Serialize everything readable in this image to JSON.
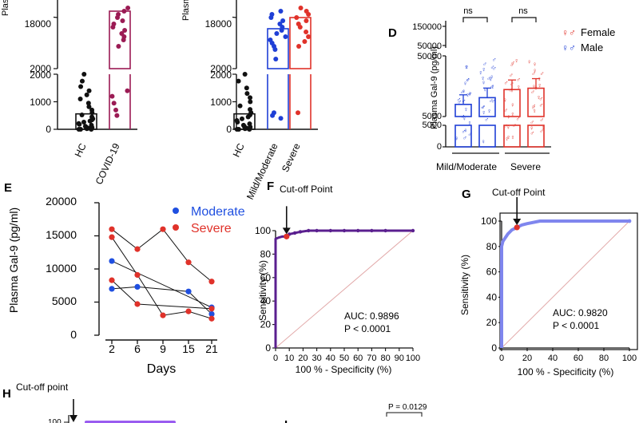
{
  "panel_letters": {
    "d": "D",
    "e": "E",
    "f": "F",
    "g": "G",
    "h": "H",
    "i": "I"
  },
  "top_fragments": {
    "a_ylabel": "Plas",
    "b_ylabel": "Plasma"
  },
  "colors": {
    "hc": "#111111",
    "covid": "#9b1b54",
    "mild": "#1f3fd6",
    "severe": "#e0322a",
    "moderate_line": "#1f4fe0",
    "roc_f": "#5a1f8f",
    "roc_g": "#7f86ee",
    "cutoff": "#e0322a",
    "diag": "#e2a9a9",
    "h_bar": "#9a5cf0"
  },
  "chart_data": [
    {
      "id": "A",
      "type": "scatter",
      "title": "",
      "xlabel": "",
      "ylabel": "Plas",
      "categories": [
        "HC",
        "COVID-19"
      ],
      "ytick_labels_upper": [
        "18000",
        "2000"
      ],
      "ytick_labels_lower": [
        "2000",
        "1000",
        "0"
      ],
      "lower_ylim": [
        0,
        2000
      ],
      "upper_ylim": [
        2000,
        22000
      ],
      "series": [
        {
          "name": "HC",
          "mean": 560,
          "values": [
            0,
            0,
            0,
            20,
            40,
            60,
            80,
            110,
            150,
            180,
            210,
            260,
            300,
            340,
            380,
            450,
            520,
            600,
            700,
            820,
            950,
            1100,
            1250,
            1400,
            1550,
            1750,
            2000
          ]
        },
        {
          "name": "COVID-19",
          "mean": 20000,
          "values": [
            500,
            700,
            950,
            1200,
            1400,
            9000,
            11000,
            12000,
            13000,
            14000,
            15000,
            16000,
            17000,
            18000,
            19000,
            20000,
            21000
          ]
        }
      ]
    },
    {
      "id": "B",
      "type": "scatter",
      "title": "",
      "xlabel": "",
      "ylabel": "Plasma",
      "categories": [
        "HC",
        "Mild/Moderate",
        "Severe"
      ],
      "ytick_labels_upper": [
        "18000",
        "2000"
      ],
      "ytick_labels_lower": [
        "2000",
        "1000",
        "0"
      ],
      "lower_ylim": [
        0,
        2000
      ],
      "upper_ylim": [
        2000,
        22000
      ],
      "series": [
        {
          "name": "HC",
          "mean": 560,
          "values": [
            0,
            0,
            0,
            20,
            40,
            80,
            110,
            150,
            200,
            260,
            320,
            380,
            450,
            520,
            600,
            720,
            850,
            1000,
            1150,
            1300,
            1500,
            1750,
            2000
          ]
        },
        {
          "name": "Mild/Moderate",
          "mean": 14500,
          "values": [
            400,
            500,
            600,
            5000,
            8000,
            9000,
            10000,
            11000,
            12000,
            13000,
            14000,
            15000,
            16000,
            17000,
            18000,
            19000,
            20000
          ]
        },
        {
          "name": "Severe",
          "mean": 18000,
          "values": [
            600,
            9000,
            10500,
            12000,
            13500,
            15000,
            16000,
            17000,
            18000,
            19000,
            20000,
            21000
          ]
        }
      ]
    },
    {
      "id": "D",
      "type": "bar",
      "title": "",
      "xlabel": "",
      "ylabel": "Plasma Gal-9 (pg/ml)",
      "group_labels": [
        "Mild/Moderate",
        "Severe"
      ],
      "ytick_labels": [
        "150000",
        "50000",
        "50000",
        "5000",
        "5000",
        "0"
      ],
      "legend": [
        "Female",
        "Male"
      ],
      "legend_position": "top-right",
      "significance": [
        "ns",
        "ns"
      ],
      "series": [
        {
          "name": "Mild/Moderate Female",
          "value": 14000,
          "color": "#1f3fd6"
        },
        {
          "name": "Mild/Moderate Male",
          "value": 19000,
          "color": "#1f3fd6"
        },
        {
          "name": "Severe Female",
          "value": 25000,
          "color": "#e0322a"
        },
        {
          "name": "Severe Male",
          "value": 26000,
          "color": "#e0322a"
        }
      ]
    },
    {
      "id": "E",
      "type": "line",
      "title": "",
      "xlabel": "Days",
      "ylabel": "Plasma Gal-9 (pg/ml)",
      "x": [
        2,
        6,
        9,
        15,
        21
      ],
      "ylim": [
        0,
        20000
      ],
      "ytick_labels": [
        "20000",
        "15000",
        "10000",
        "5000",
        "0"
      ],
      "legend": [
        "Moderate",
        "Severe"
      ],
      "legend_position": "top-right",
      "series": [
        {
          "name": "Moderate",
          "points": [
            [
              2,
              11200
            ],
            [
              21,
              4200
            ]
          ]
        },
        {
          "name": "Moderate",
          "points": [
            [
              2,
              7000
            ],
            [
              6,
              7300
            ],
            [
              15,
              6600
            ],
            [
              21,
              3200
            ]
          ]
        },
        {
          "name": "Severe",
          "points": [
            [
              2,
              16000
            ],
            [
              6,
              13000
            ],
            [
              9,
              16000
            ],
            [
              15,
              11000
            ],
            [
              21,
              8100
            ]
          ]
        },
        {
          "name": "Severe",
          "points": [
            [
              2,
              14800
            ],
            [
              6,
              9100
            ],
            [
              9,
              3000
            ],
            [
              15,
              3600
            ],
            [
              21,
              2500
            ]
          ]
        },
        {
          "name": "Severe",
          "points": [
            [
              2,
              8300
            ],
            [
              6,
              4700
            ],
            [
              21,
              4000
            ]
          ]
        }
      ]
    },
    {
      "id": "F",
      "type": "line",
      "title": "",
      "xlabel": "100 % - Specificity (%)",
      "ylabel": "Sensitivity (%)",
      "xlim": [
        0,
        100
      ],
      "ylim": [
        0,
        100
      ],
      "xtick_labels": [
        "0",
        "10",
        "20",
        "30",
        "40",
        "50",
        "60",
        "70",
        "80",
        "90",
        "100"
      ],
      "ytick_labels": [
        "100",
        "80",
        "60",
        "40",
        "20",
        "0"
      ],
      "annotation": "Cut-off Point",
      "auc": "AUC: 0.9896",
      "p": "P < 0.0001",
      "cutoff": [
        8,
        95
      ],
      "points": [
        [
          0,
          0
        ],
        [
          0,
          93
        ],
        [
          2,
          94
        ],
        [
          5,
          95
        ],
        [
          8,
          95
        ],
        [
          10,
          97
        ],
        [
          14,
          98
        ],
        [
          18,
          99
        ],
        [
          24,
          100
        ],
        [
          30,
          100
        ],
        [
          40,
          100
        ],
        [
          50,
          100
        ],
        [
          60,
          100
        ],
        [
          70,
          100
        ],
        [
          80,
          100
        ],
        [
          100,
          100
        ]
      ]
    },
    {
      "id": "G",
      "type": "line",
      "title": "",
      "xlabel": "100 % - Specificity (%)",
      "ylabel": "Sensitivity (%)",
      "xlim": [
        0,
        100
      ],
      "ylim": [
        0,
        100
      ],
      "xtick_labels": [
        "0",
        "20",
        "40",
        "60",
        "80",
        "100"
      ],
      "ytick_labels": [
        "100",
        "80",
        "60",
        "40",
        "20",
        "0"
      ],
      "annotation": "Cut-off Point",
      "auc": "AUC: 0.9820",
      "p": "P < 0.0001",
      "cutoff": [
        12,
        95
      ],
      "points": [
        [
          0,
          0
        ],
        [
          0,
          80
        ],
        [
          1,
          84
        ],
        [
          3,
          87
        ],
        [
          5,
          90
        ],
        [
          8,
          93
        ],
        [
          12,
          95
        ],
        [
          16,
          97
        ],
        [
          20,
          98
        ],
        [
          30,
          100
        ],
        [
          50,
          100
        ],
        [
          70,
          100
        ],
        [
          100,
          100
        ]
      ]
    },
    {
      "id": "H",
      "type": "line",
      "annotation": "Cut-off point",
      "ytick_labels": [
        "100"
      ],
      "ylim": [
        0,
        100
      ]
    },
    {
      "id": "I",
      "type": "bar",
      "significance": [
        "P = 0.0129"
      ]
    }
  ]
}
